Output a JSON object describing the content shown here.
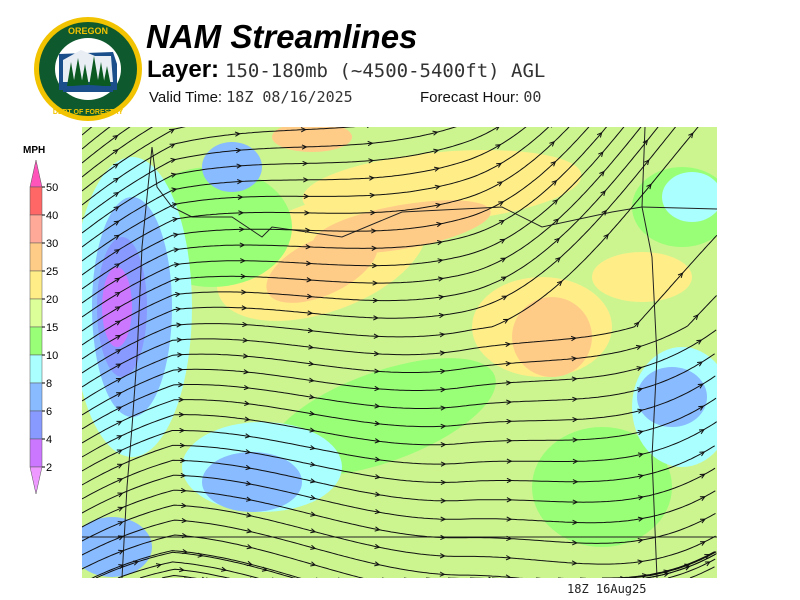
{
  "logo": {
    "top_text": "OREGON",
    "bottom_text": "DEPARTMENT OF FORESTRY"
  },
  "header": {
    "title": "NAM Streamlines",
    "layer_label": "Layer:",
    "layer_value": "150-180mb (~4500-5400ft) AGL",
    "valid_label": "Valid Time:",
    "valid_value": "18Z 08/16/2025",
    "forecast_label": "Forecast Hour:",
    "forecast_value": "00"
  },
  "colorbar": {
    "unit": "MPH",
    "levels": [
      "50",
      "40",
      "30",
      "25",
      "20",
      "15",
      "10",
      "8",
      "6",
      "4",
      "2"
    ],
    "colors": [
      "#ff55bb",
      "#ff6666",
      "#ffaa99",
      "#ffcc88",
      "#ffee88",
      "#ddff99",
      "#99ff77",
      "#aaffff",
      "#88bbff",
      "#8899ff",
      "#cc77ff",
      "#ee99ff"
    ]
  },
  "footer": {
    "timestamp": "18Z 16Aug25"
  }
}
